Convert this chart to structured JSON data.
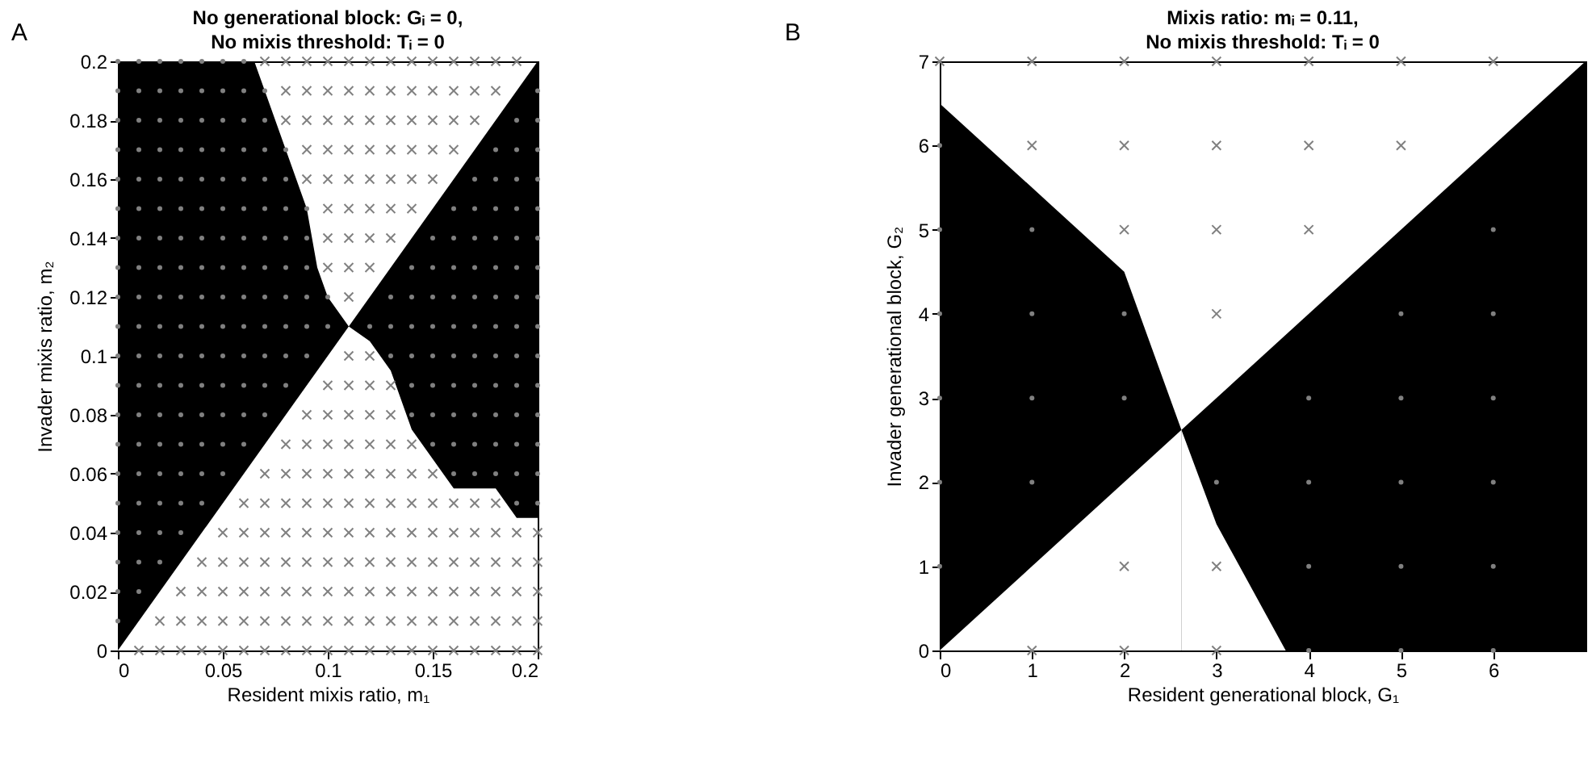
{
  "chart_data": [
    {
      "type": "scatter",
      "title": "No generational block: Gᵢ = 0,",
      "subtitle": "No mixis threshold: Tᵢ = 0",
      "xlabel": "Resident mixis ratio, m₁",
      "ylabel": "Invader mixis ratio, m₂",
      "annotations": [
        "A"
      ],
      "xlim": [
        0,
        0.2
      ],
      "xticks": [
        0,
        0.05,
        0.1,
        0.15,
        0.2
      ],
      "ylim": [
        0,
        0.2
      ],
      "yticks": [
        0,
        0.02,
        0.04,
        0.06,
        0.08,
        0.1,
        0.12,
        0.14,
        0.16,
        0.18,
        0.2
      ],
      "series": [
        {
          "type": "area",
          "color": "#000000",
          "x": [
            0,
            0.065,
            0.075,
            0.085,
            0.09,
            0.095,
            0.1,
            0.11
          ],
          "values": [
            0.2,
            0.2,
            0.18,
            0.16,
            0.15,
            0.13,
            0.12,
            0.11
          ]
        },
        {
          "type": "area",
          "color": "#000000",
          "x": [
            0.11,
            0.2
          ],
          "values": [
            0.11,
            0.2
          ]
        },
        {
          "type": "area",
          "color": "#ffffff",
          "x": [
            0,
            0.11
          ],
          "values": [
            0,
            0.11
          ]
        },
        {
          "type": "area",
          "color": "#ffffff",
          "x": [
            0.11,
            0.12,
            0.13,
            0.135,
            0.14,
            0.15,
            0.16,
            0.18,
            0.19,
            0.2
          ],
          "values": [
            0.11,
            0.105,
            0.095,
            0.085,
            0.075,
            0.065,
            0.055,
            0.055,
            0.045,
            0.045
          ]
        },
        {
          "type": "scatter",
          "marker": "cross",
          "color": "#808080",
          "x": [
            0.01
          ],
          "values": [
            0
          ]
        },
        {
          "type": "scatter",
          "marker": "cross",
          "color": "#808080",
          "x": [
            0.02,
            0.02
          ],
          "values": [
            0,
            0.01
          ]
        },
        {
          "type": "scatter",
          "marker": "cross",
          "color": "#808080",
          "x": [
            0.03,
            0.03,
            0.03
          ],
          "values": [
            0,
            0.01,
            0.02
          ]
        },
        {
          "type": "scatter",
          "marker": "cross",
          "color": "#808080",
          "x": [
            0.04,
            0.04,
            0.04,
            0.04
          ],
          "values": [
            0,
            0.01,
            0.02,
            0.03
          ]
        },
        {
          "type": "scatter",
          "marker": "cross",
          "color": "#808080",
          "x": [
            0.05,
            0.05,
            0.05,
            0.05,
            0.05
          ],
          "values": [
            0,
            0.01,
            0.02,
            0.03,
            0.04
          ]
        },
        {
          "type": "scatter",
          "marker": "cross",
          "color": "#808080",
          "x": [
            0.06,
            0.06,
            0.06,
            0.06,
            0.06,
            0.06
          ],
          "values": [
            0,
            0.01,
            0.02,
            0.03,
            0.04,
            0.05
          ]
        },
        {
          "type": "scatter",
          "marker": "cross",
          "color": "#808080",
          "x": [
            0.07,
            0.07,
            0.07,
            0.07,
            0.07,
            0.07,
            0.07,
            0.07
          ],
          "values": [
            0,
            0.01,
            0.02,
            0.03,
            0.04,
            0.05,
            0.06,
            0.2
          ]
        },
        {
          "type": "scatter",
          "marker": "cross",
          "color": "#808080",
          "x": [
            0.08,
            0.08,
            0.08,
            0.08,
            0.08,
            0.08,
            0.08,
            0.08,
            0.08,
            0.08,
            0.08
          ],
          "values": [
            0,
            0.01,
            0.02,
            0.03,
            0.04,
            0.05,
            0.06,
            0.07,
            0.18,
            0.19,
            0.2
          ]
        },
        {
          "type": "scatter",
          "marker": "cross",
          "color": "#808080",
          "x": [
            0.09,
            0.09,
            0.09,
            0.09,
            0.09,
            0.09,
            0.09,
            0.09,
            0.09,
            0.09,
            0.09,
            0.09,
            0.09,
            0.09
          ],
          "values": [
            0,
            0.01,
            0.02,
            0.03,
            0.04,
            0.05,
            0.06,
            0.07,
            0.08,
            0.16,
            0.17,
            0.18,
            0.19,
            0.2
          ]
        },
        {
          "type": "scatter",
          "marker": "cross",
          "color": "#808080",
          "x": [
            0.1,
            0.1,
            0.1,
            0.1,
            0.1,
            0.1,
            0.1,
            0.1,
            0.1,
            0.1,
            0.1,
            0.1,
            0.1,
            0.1,
            0.1,
            0.1,
            0.1,
            0.1
          ],
          "values": [
            0,
            0.01,
            0.02,
            0.03,
            0.04,
            0.05,
            0.06,
            0.07,
            0.08,
            0.09,
            0.13,
            0.14,
            0.15,
            0.16,
            0.17,
            0.18,
            0.19,
            0.2
          ]
        },
        {
          "type": "scatter",
          "marker": "cross",
          "color": "#808080",
          "x": [
            0.11,
            0.11,
            0.11,
            0.11,
            0.11,
            0.11,
            0.11,
            0.11,
            0.11,
            0.11,
            0.11,
            0.11,
            0.11,
            0.11,
            0.11,
            0.11,
            0.11,
            0.11,
            0.11,
            0.11
          ],
          "values": [
            0,
            0.01,
            0.02,
            0.03,
            0.04,
            0.05,
            0.06,
            0.07,
            0.08,
            0.09,
            0.1,
            0.12,
            0.13,
            0.14,
            0.15,
            0.16,
            0.17,
            0.18,
            0.19,
            0.2
          ]
        },
        {
          "type": "scatter",
          "marker": "cross",
          "color": "#808080",
          "x": [
            0.12,
            0.12,
            0.12,
            0.12,
            0.12,
            0.12,
            0.12,
            0.12,
            0.12,
            0.12,
            0.12,
            0.12,
            0.12,
            0.12,
            0.12,
            0.12,
            0.12,
            0.12,
            0.12
          ],
          "values": [
            0,
            0.01,
            0.02,
            0.03,
            0.04,
            0.05,
            0.06,
            0.07,
            0.08,
            0.09,
            0.1,
            0.13,
            0.14,
            0.15,
            0.16,
            0.17,
            0.18,
            0.19,
            0.2
          ]
        },
        {
          "type": "scatter",
          "marker": "cross",
          "color": "#808080",
          "x": [
            0.13,
            0.13,
            0.13,
            0.13,
            0.13,
            0.13,
            0.13,
            0.13,
            0.13,
            0.13,
            0.13,
            0.13,
            0.13,
            0.13,
            0.13,
            0.13,
            0.13
          ],
          "values": [
            0,
            0.01,
            0.02,
            0.03,
            0.04,
            0.05,
            0.06,
            0.07,
            0.08,
            0.09,
            0.14,
            0.15,
            0.16,
            0.17,
            0.18,
            0.19,
            0.2
          ]
        },
        {
          "type": "scatter",
          "marker": "cross",
          "color": "#808080",
          "x": [
            0.14,
            0.14,
            0.14,
            0.14,
            0.14,
            0.14,
            0.14,
            0.14,
            0.14,
            0.14,
            0.14,
            0.14,
            0.14,
            0.14
          ],
          "values": [
            0,
            0.01,
            0.02,
            0.03,
            0.04,
            0.05,
            0.06,
            0.07,
            0.15,
            0.16,
            0.17,
            0.18,
            0.19,
            0.2
          ]
        },
        {
          "type": "scatter",
          "marker": "cross",
          "color": "#808080",
          "x": [
            0.15,
            0.15,
            0.15,
            0.15,
            0.15,
            0.15,
            0.15,
            0.15,
            0.15,
            0.15,
            0.15,
            0.15
          ],
          "values": [
            0,
            0.01,
            0.02,
            0.03,
            0.04,
            0.05,
            0.06,
            0.16,
            0.17,
            0.18,
            0.19,
            0.2
          ]
        },
        {
          "type": "scatter",
          "marker": "cross",
          "color": "#808080",
          "x": [
            0.16,
            0.16,
            0.16,
            0.16,
            0.16,
            0.16,
            0.16,
            0.16,
            0.16,
            0.16
          ],
          "values": [
            0,
            0.01,
            0.02,
            0.03,
            0.04,
            0.05,
            0.17,
            0.18,
            0.19,
            0.2
          ]
        },
        {
          "type": "scatter",
          "marker": "cross",
          "color": "#808080",
          "x": [
            0.17,
            0.17,
            0.17,
            0.17,
            0.17,
            0.17,
            0.17,
            0.17,
            0.17
          ],
          "values": [
            0,
            0.01,
            0.02,
            0.03,
            0.04,
            0.05,
            0.18,
            0.19,
            0.2
          ]
        },
        {
          "type": "scatter",
          "marker": "cross",
          "color": "#808080",
          "x": [
            0.18,
            0.18,
            0.18,
            0.18,
            0.18,
            0.18,
            0.18,
            0.18
          ],
          "values": [
            0,
            0.01,
            0.02,
            0.03,
            0.04,
            0.05,
            0.19,
            0.2
          ]
        },
        {
          "type": "scatter",
          "marker": "cross",
          "color": "#808080",
          "x": [
            0.19,
            0.19,
            0.19,
            0.19,
            0.19,
            0.19
          ],
          "values": [
            0,
            0.01,
            0.02,
            0.03,
            0.04,
            0.2
          ]
        },
        {
          "type": "scatter",
          "marker": "cross",
          "color": "#808080",
          "x": [
            0.2,
            0.2,
            0.2,
            0.2,
            0.2
          ],
          "values": [
            0,
            0.01,
            0.02,
            0.03,
            0.04
          ]
        },
        {
          "type": "scatter",
          "marker": "circle",
          "color": "#808080",
          "x": [
            0,
            0,
            0,
            0,
            0,
            0,
            0,
            0,
            0,
            0,
            0,
            0,
            0,
            0,
            0,
            0,
            0,
            0,
            0,
            0
          ],
          "values": [
            0.01,
            0.02,
            0.03,
            0.04,
            0.05,
            0.06,
            0.07,
            0.08,
            0.09,
            0.1,
            0.11,
            0.12,
            0.13,
            0.14,
            0.15,
            0.16,
            0.17,
            0.18,
            0.19,
            0.2
          ]
        },
        {
          "type": "scatter",
          "marker": "circle",
          "color": "#808080",
          "x": [
            0.01,
            0.01,
            0.01,
            0.01,
            0.01,
            0.01,
            0.01,
            0.01,
            0.01,
            0.01,
            0.01,
            0.01,
            0.01,
            0.01,
            0.01,
            0.01,
            0.01,
            0.01,
            0.01
          ],
          "values": [
            0.02,
            0.03,
            0.04,
            0.05,
            0.06,
            0.07,
            0.08,
            0.09,
            0.1,
            0.11,
            0.12,
            0.13,
            0.14,
            0.15,
            0.16,
            0.17,
            0.18,
            0.19,
            0.2
          ]
        },
        {
          "type": "scatter",
          "marker": "circle",
          "color": "#808080",
          "x": [
            0.02,
            0.02,
            0.02,
            0.02,
            0.02,
            0.02,
            0.02,
            0.02,
            0.02,
            0.02,
            0.02,
            0.02,
            0.02,
            0.02,
            0.02,
            0.02,
            0.02,
            0.02
          ],
          "values": [
            0.03,
            0.04,
            0.05,
            0.06,
            0.07,
            0.08,
            0.09,
            0.1,
            0.11,
            0.12,
            0.13,
            0.14,
            0.15,
            0.16,
            0.17,
            0.18,
            0.19,
            0.2
          ]
        },
        {
          "type": "scatter",
          "marker": "circle",
          "color": "#808080",
          "x": [
            0.03,
            0.03,
            0.03,
            0.03,
            0.03,
            0.03,
            0.03,
            0.03,
            0.03,
            0.03,
            0.03,
            0.03,
            0.03,
            0.03,
            0.03,
            0.03,
            0.03
          ],
          "values": [
            0.04,
            0.05,
            0.06,
            0.07,
            0.08,
            0.09,
            0.1,
            0.11,
            0.12,
            0.13,
            0.14,
            0.15,
            0.16,
            0.17,
            0.18,
            0.19,
            0.2
          ]
        },
        {
          "type": "scatter",
          "marker": "circle",
          "color": "#808080",
          "x": [
            0.04,
            0.04,
            0.04,
            0.04,
            0.04,
            0.04,
            0.04,
            0.04,
            0.04,
            0.04,
            0.04,
            0.04,
            0.04,
            0.04,
            0.04,
            0.04
          ],
          "values": [
            0.05,
            0.06,
            0.07,
            0.08,
            0.09,
            0.1,
            0.11,
            0.12,
            0.13,
            0.14,
            0.15,
            0.16,
            0.17,
            0.18,
            0.19,
            0.2
          ]
        },
        {
          "type": "scatter",
          "marker": "circle",
          "color": "#808080",
          "x": [
            0.05,
            0.05,
            0.05,
            0.05,
            0.05,
            0.05,
            0.05,
            0.05,
            0.05,
            0.05,
            0.05,
            0.05,
            0.05,
            0.05,
            0.05
          ],
          "values": [
            0.06,
            0.07,
            0.08,
            0.09,
            0.1,
            0.11,
            0.12,
            0.13,
            0.14,
            0.15,
            0.16,
            0.17,
            0.18,
            0.19,
            0.2
          ]
        },
        {
          "type": "scatter",
          "marker": "circle",
          "color": "#808080",
          "x": [
            0.06,
            0.06,
            0.06,
            0.06,
            0.06,
            0.06,
            0.06,
            0.06,
            0.06,
            0.06,
            0.06,
            0.06,
            0.06,
            0.06
          ],
          "values": [
            0.07,
            0.08,
            0.09,
            0.1,
            0.11,
            0.12,
            0.13,
            0.14,
            0.15,
            0.16,
            0.17,
            0.18,
            0.19,
            0.2
          ]
        },
        {
          "type": "scatter",
          "marker": "circle",
          "color": "#808080",
          "x": [
            0.07,
            0.07,
            0.07,
            0.07,
            0.07,
            0.07,
            0.07,
            0.07,
            0.07,
            0.07,
            0.07,
            0.07
          ],
          "values": [
            0.08,
            0.09,
            0.1,
            0.11,
            0.12,
            0.13,
            0.14,
            0.15,
            0.16,
            0.17,
            0.18,
            0.19
          ]
        },
        {
          "type": "scatter",
          "marker": "circle",
          "color": "#808080",
          "x": [
            0.08,
            0.08,
            0.08,
            0.08,
            0.08,
            0.08,
            0.08,
            0.08,
            0.08
          ],
          "values": [
            0.09,
            0.1,
            0.11,
            0.12,
            0.13,
            0.14,
            0.15,
            0.16,
            0.17
          ]
        },
        {
          "type": "scatter",
          "marker": "circle",
          "color": "#808080",
          "x": [
            0.09,
            0.09,
            0.09,
            0.09,
            0.09,
            0.09
          ],
          "values": [
            0.1,
            0.11,
            0.12,
            0.13,
            0.14,
            0.15
          ]
        },
        {
          "type": "scatter",
          "marker": "circle",
          "color": "#808080",
          "x": [
            0.1,
            0.1
          ],
          "values": [
            0.11,
            0.12
          ]
        },
        {
          "type": "scatter",
          "marker": "circle",
          "color": "#808080",
          "x": [
            0.12
          ],
          "values": [
            0.11
          ]
        },
        {
          "type": "scatter",
          "marker": "circle",
          "color": "#808080",
          "x": [
            0.13,
            0.13,
            0.13
          ],
          "values": [
            0.1,
            0.11,
            0.12
          ]
        },
        {
          "type": "scatter",
          "marker": "circle",
          "color": "#808080",
          "x": [
            0.14,
            0.14,
            0.14,
            0.14,
            0.14,
            0.14
          ],
          "values": [
            0.08,
            0.09,
            0.1,
            0.11,
            0.12,
            0.13
          ]
        },
        {
          "type": "scatter",
          "marker": "circle",
          "color": "#808080",
          "x": [
            0.15,
            0.15,
            0.15,
            0.15,
            0.15,
            0.15,
            0.15,
            0.15
          ],
          "values": [
            0.07,
            0.08,
            0.09,
            0.1,
            0.11,
            0.12,
            0.13,
            0.14
          ]
        },
        {
          "type": "scatter",
          "marker": "circle",
          "color": "#808080",
          "x": [
            0.16,
            0.16,
            0.16,
            0.16,
            0.16,
            0.16,
            0.16,
            0.16,
            0.16,
            0.16
          ],
          "values": [
            0.06,
            0.07,
            0.08,
            0.09,
            0.1,
            0.11,
            0.12,
            0.13,
            0.14,
            0.15
          ]
        },
        {
          "type": "scatter",
          "marker": "circle",
          "color": "#808080",
          "x": [
            0.17,
            0.17,
            0.17,
            0.17,
            0.17,
            0.17,
            0.17,
            0.17,
            0.17,
            0.17,
            0.17
          ],
          "values": [
            0.06,
            0.07,
            0.08,
            0.09,
            0.1,
            0.11,
            0.12,
            0.13,
            0.14,
            0.15,
            0.16
          ]
        },
        {
          "type": "scatter",
          "marker": "circle",
          "color": "#808080",
          "x": [
            0.18,
            0.18,
            0.18,
            0.18,
            0.18,
            0.18,
            0.18,
            0.18,
            0.18,
            0.18,
            0.18,
            0.18
          ],
          "values": [
            0.06,
            0.07,
            0.08,
            0.09,
            0.1,
            0.11,
            0.12,
            0.13,
            0.14,
            0.15,
            0.16,
            0.17
          ]
        },
        {
          "type": "scatter",
          "marker": "circle",
          "color": "#808080",
          "x": [
            0.19,
            0.19,
            0.19,
            0.19,
            0.19,
            0.19,
            0.19,
            0.19,
            0.19,
            0.19,
            0.19,
            0.19,
            0.19,
            0.19
          ],
          "values": [
            0.05,
            0.06,
            0.07,
            0.08,
            0.09,
            0.1,
            0.11,
            0.12,
            0.13,
            0.14,
            0.15,
            0.16,
            0.17,
            0.18
          ]
        },
        {
          "type": "scatter",
          "marker": "circle",
          "color": "#808080",
          "x": [
            0.2,
            0.2,
            0.2,
            0.2,
            0.2,
            0.2,
            0.2,
            0.2,
            0.2,
            0.2,
            0.2,
            0.2,
            0.2,
            0.2,
            0.2
          ],
          "values": [
            0.05,
            0.06,
            0.07,
            0.08,
            0.09,
            0.1,
            0.11,
            0.12,
            0.13,
            0.14,
            0.15,
            0.16,
            0.17,
            0.18,
            0.19
          ]
        }
      ]
    },
    {
      "type": "scatter",
      "title": "Mixis ratio: mᵢ = 0.11,",
      "subtitle": "No mixis threshold: Tᵢ = 0",
      "xlabel": "Resident generational block, G₁",
      "ylabel": "Invader generational block, G₂",
      "annotations": [
        "B"
      ],
      "xlim": [
        0,
        7
      ],
      "xticks": [
        0,
        1,
        2,
        3,
        4,
        5,
        6
      ],
      "ylim": [
        0,
        7
      ],
      "yticks": [
        0,
        1,
        2,
        3,
        4,
        5,
        6,
        7
      ],
      "series": [
        {
          "type": "area",
          "color": "#000000",
          "x": [
            0,
            2,
            2.62
          ],
          "values": [
            6.5,
            4.5,
            2.62
          ]
        },
        {
          "type": "area",
          "color": "#000000",
          "x": [
            2.62,
            7
          ],
          "values": [
            2.62,
            7
          ]
        },
        {
          "type": "area",
          "color": "#ffffff",
          "x": [
            0,
            2.62
          ],
          "values": [
            0,
            2.62
          ]
        },
        {
          "type": "area",
          "color": "#ffffff",
          "x": [
            2.62,
            3,
            3.75
          ],
          "values": [
            2.62,
            1.5,
            0
          ]
        },
        {
          "type": "scatter",
          "marker": "cross",
          "color": "#808080",
          "x": [
            0,
            1,
            2,
            3,
            4,
            5,
            6,
            1,
            2,
            3,
            4,
            5,
            2,
            3,
            4,
            3,
            1,
            2,
            3,
            2,
            3
          ],
          "values": [
            7,
            7,
            7,
            7,
            7,
            7,
            7,
            6,
            6,
            6,
            6,
            6,
            5,
            5,
            5,
            4,
            0,
            0,
            0,
            1,
            1
          ]
        },
        {
          "type": "scatter",
          "marker": "circle",
          "color": "#808080",
          "x": [
            0,
            0,
            1,
            6,
            0,
            1,
            2,
            5,
            6,
            0,
            1,
            2,
            4,
            5,
            6,
            0,
            1,
            3,
            4,
            5,
            6,
            0,
            4,
            5,
            6,
            4,
            5,
            6
          ],
          "values": [
            6,
            5,
            5,
            5,
            4,
            4,
            4,
            4,
            4,
            3,
            3,
            3,
            3,
            3,
            3,
            2,
            2,
            2,
            2,
            2,
            2,
            1,
            1,
            1,
            1,
            0,
            0,
            0
          ]
        }
      ]
    }
  ]
}
